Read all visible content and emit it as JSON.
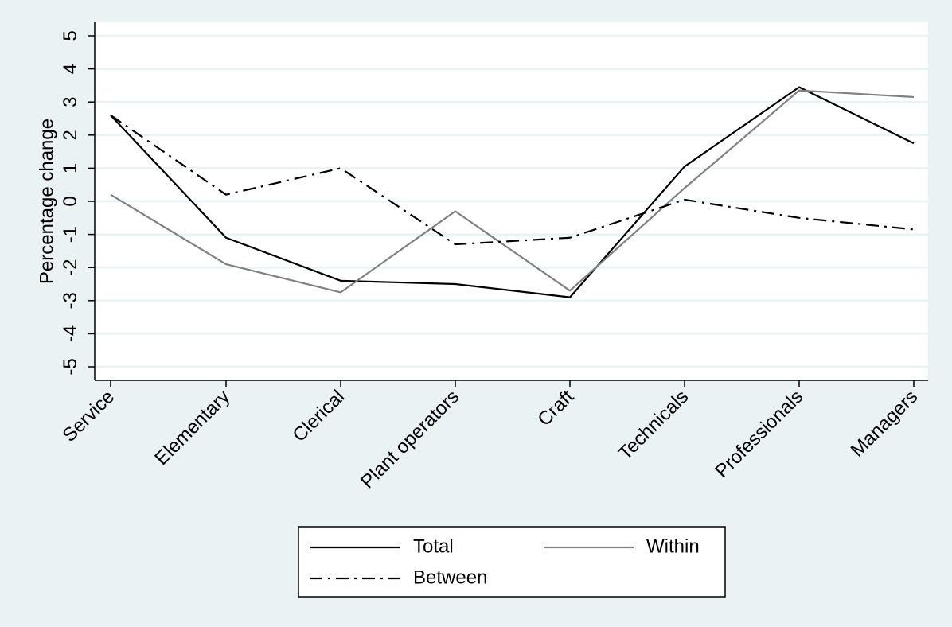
{
  "chart_data": {
    "type": "line",
    "title": "",
    "xlabel": "",
    "ylabel": "Percentage change",
    "ylim": [
      -5,
      5
    ],
    "yticks": [
      5,
      4,
      3,
      2,
      1,
      0,
      -1,
      -2,
      -3,
      -4,
      -5
    ],
    "grid": true,
    "legend_position": "bottom",
    "categories": [
      "Service",
      "Elementary",
      "Clerical",
      "Plant operators",
      "Craft",
      "Technicals",
      "Professionals",
      "Managers"
    ],
    "series": [
      {
        "name": "Total",
        "color": "#000000",
        "dash": "solid",
        "values": [
          2.6,
          -1.1,
          -2.4,
          -2.5,
          -2.9,
          1.05,
          3.45,
          1.75
        ]
      },
      {
        "name": "Within",
        "color": "#808080",
        "dash": "solid",
        "values": [
          0.2,
          -1.9,
          -2.75,
          -0.3,
          -2.7,
          0.4,
          3.35,
          3.15
        ]
      },
      {
        "name": "Between",
        "color": "#000000",
        "dash": "dashdot",
        "values": [
          2.6,
          0.2,
          1.0,
          -1.3,
          -1.1,
          0.05,
          -0.5,
          -0.85
        ]
      }
    ]
  }
}
